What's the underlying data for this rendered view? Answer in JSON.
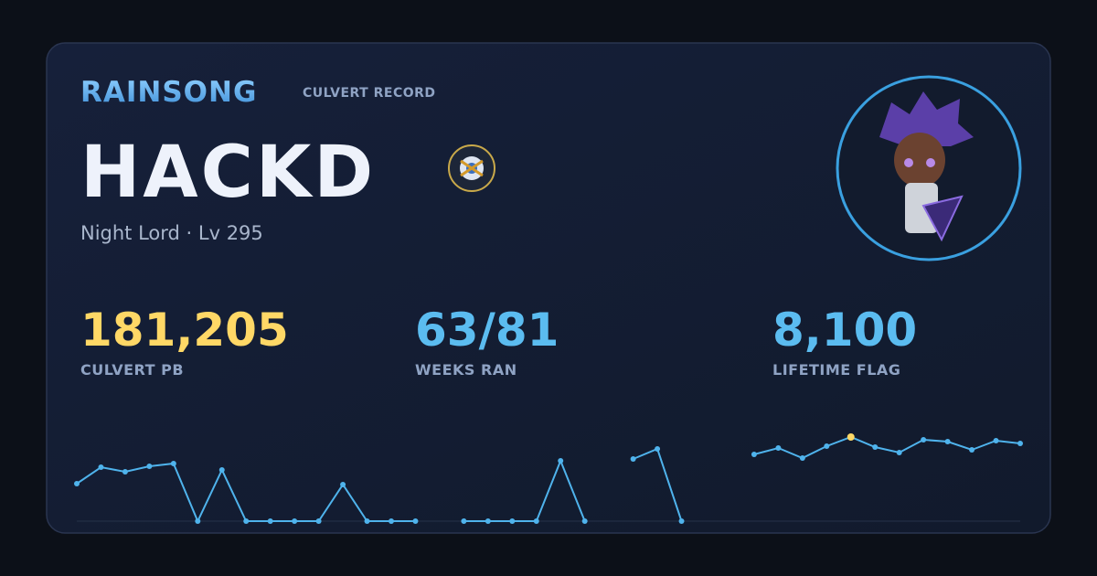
{
  "header": {
    "brand": "RAINSONG",
    "tag": "CULVERT RECORD"
  },
  "player": {
    "name": "HACKD",
    "subtitle": "Night Lord · Lv 295"
  },
  "stats": [
    {
      "value": "181,205",
      "label": "CULVERT PB",
      "color": "#ffd866"
    },
    {
      "value": "63/81",
      "label": "WEEKS RAN",
      "color": "#5bbcf0"
    },
    {
      "value": "8,100",
      "label": "LIFETIME FLAG",
      "color": "#5bbcf0"
    }
  ],
  "chart_data": {
    "type": "line",
    "color": "#4fb3ec",
    "highlight_color": "#ffd866",
    "ylim": [
      0,
      181205
    ],
    "values": [
      80800,
      116200,
      106400,
      118200,
      124100,
      0,
      110300,
      0,
      0,
      0,
      0,
      78800,
      0,
      0,
      0,
      null,
      0,
      0,
      0,
      0,
      130000,
      0,
      null,
      133900,
      155600,
      0,
      null,
      null,
      143800,
      157600,
      135900,
      161500,
      181205,
      159500,
      147700,
      175300,
      171400,
      153600,
      173300,
      167400
    ]
  }
}
